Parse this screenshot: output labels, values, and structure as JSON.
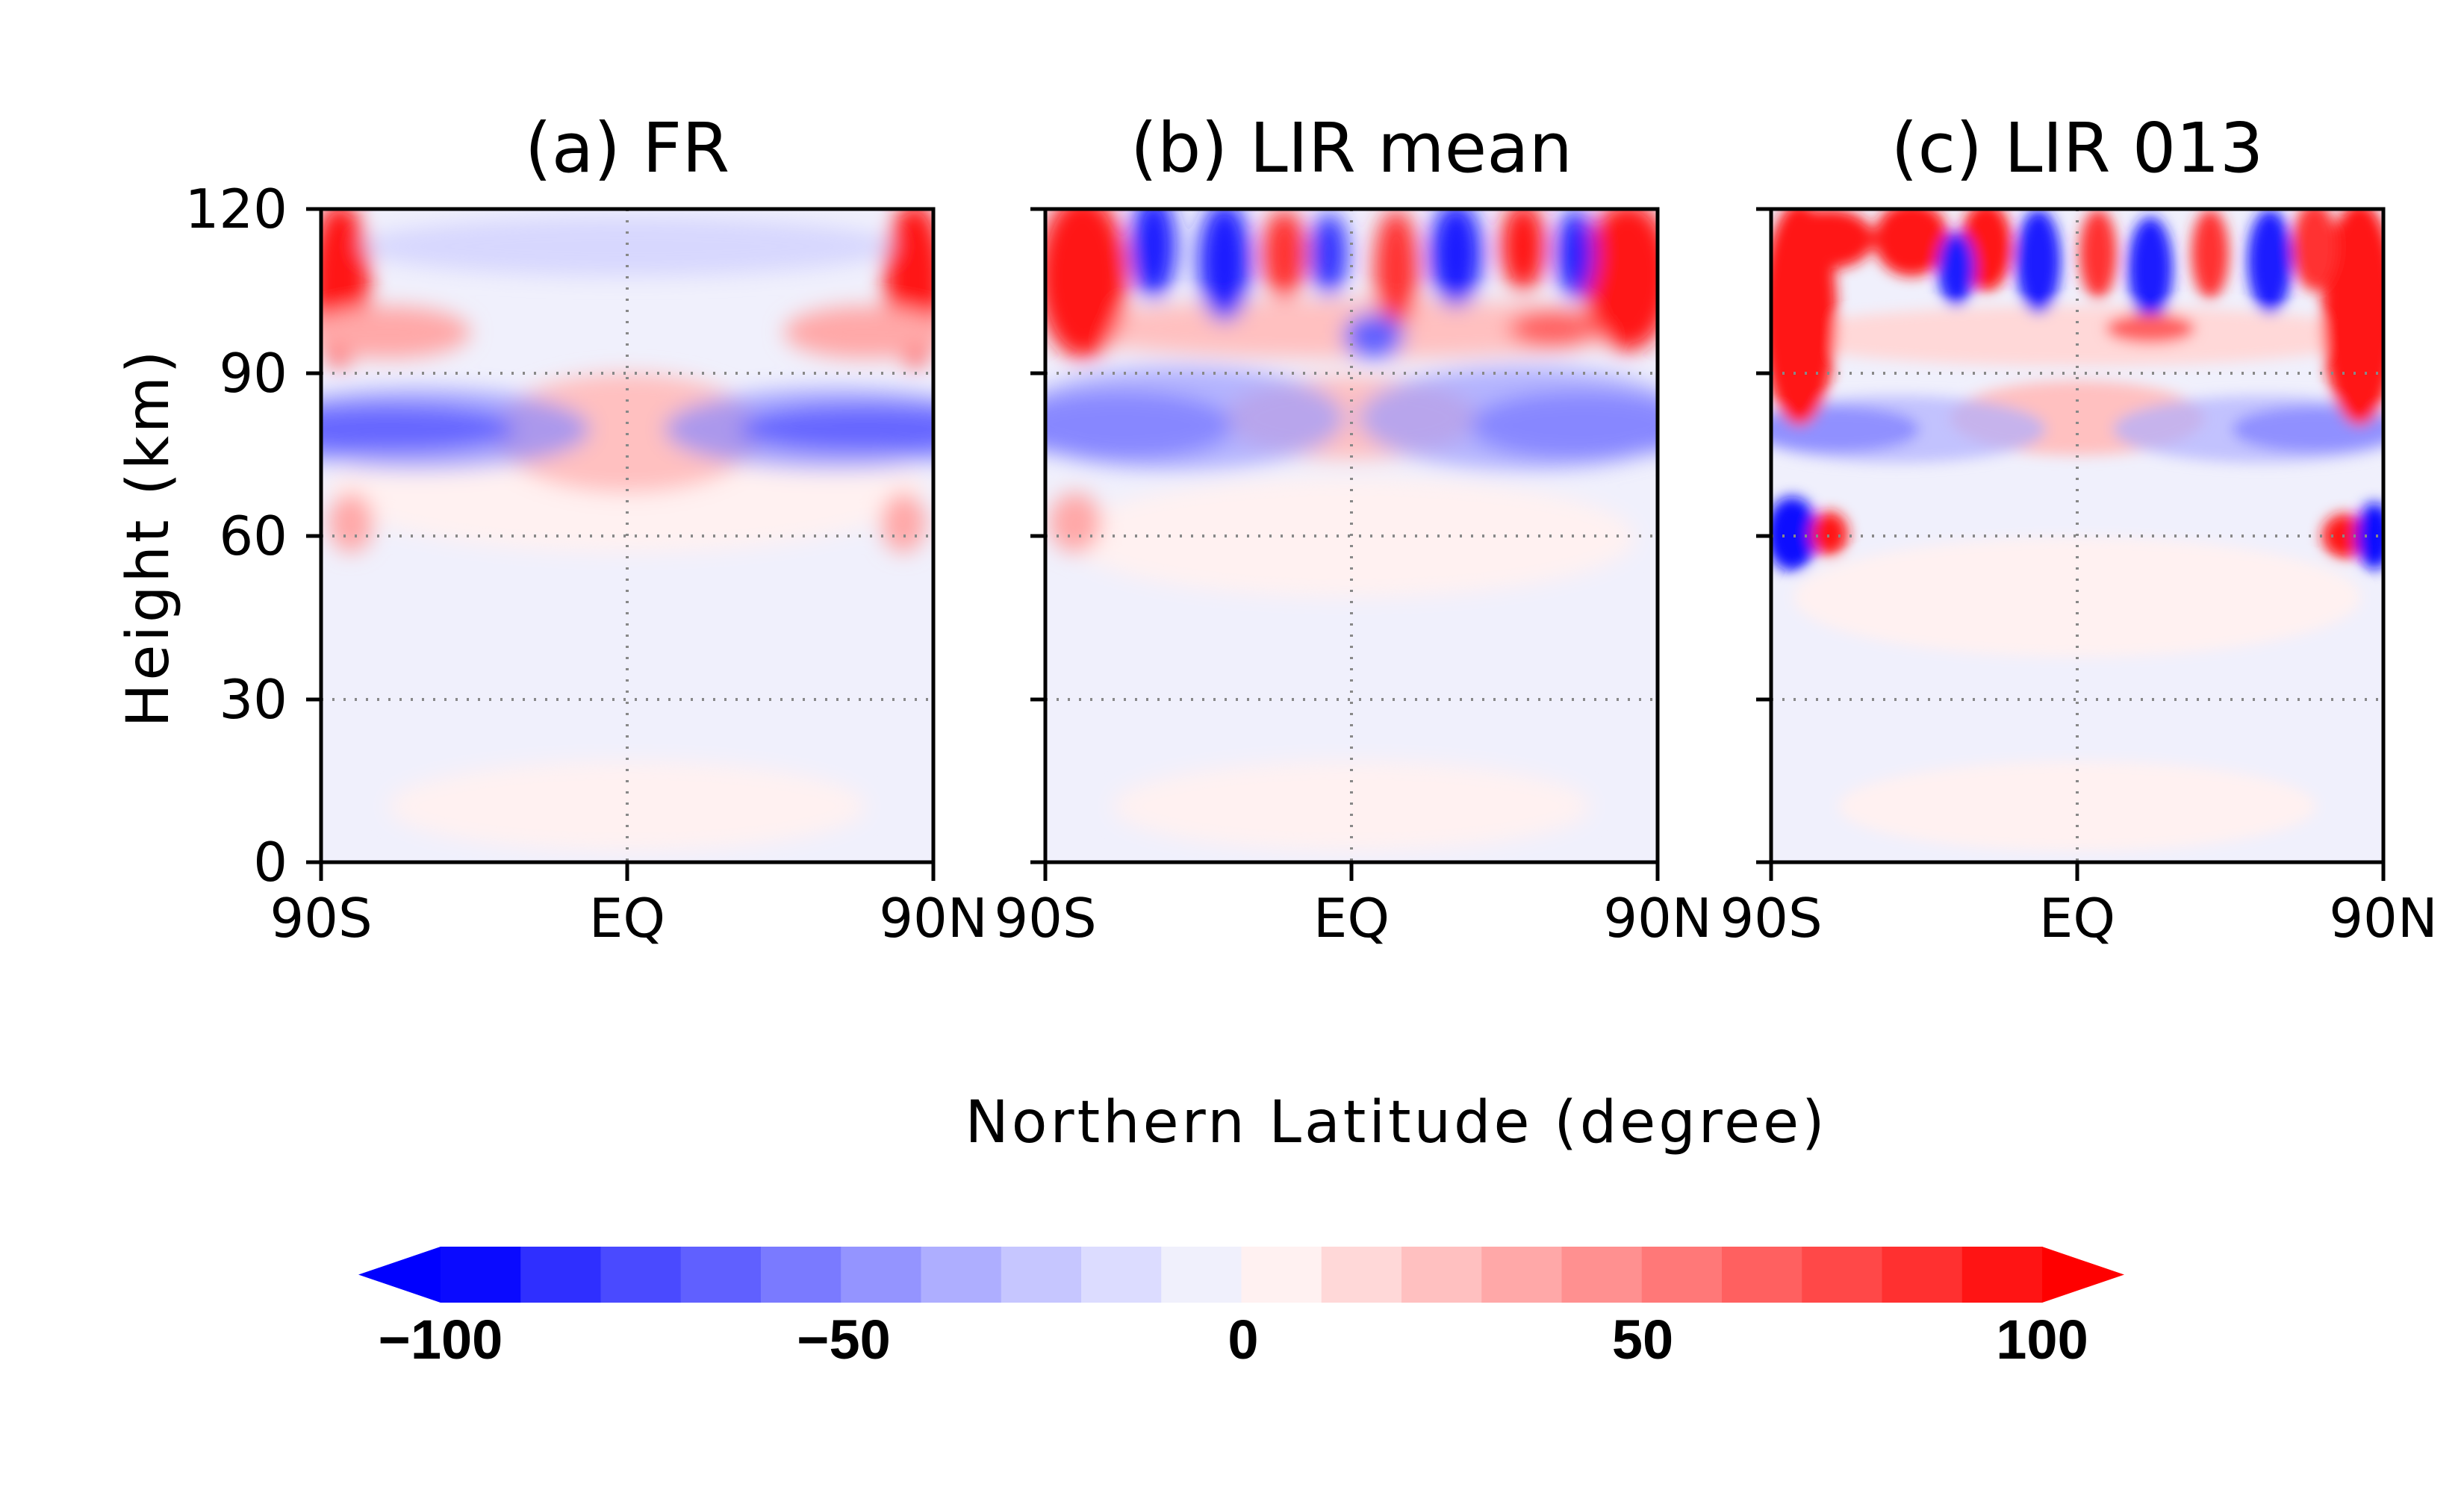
{
  "chart_data": [
    {
      "type": "heatmap",
      "title": "(a) FR",
      "xlabel": "Northern Latitude (degree)",
      "ylabel": "Height (km)",
      "x_ticks": [
        "90S",
        "EQ",
        "90N"
      ],
      "y_ticks": [
        "0",
        "30",
        "60",
        "90",
        "120"
      ],
      "xlim": [
        -90,
        90
      ],
      "ylim": [
        0,
        120
      ],
      "grid": "dotted at EQ and 30, 60, 90 km",
      "features": [
        {
          "lat": -80,
          "height": 79,
          "value": -95
        },
        {
          "lat": 80,
          "height": 79,
          "value": -95
        },
        {
          "lat": 0,
          "height": 80,
          "value": 40
        },
        {
          "lat": -88,
          "height": 108,
          "value": 100
        },
        {
          "lat": 88,
          "height": 108,
          "value": 100
        },
        {
          "lat": -70,
          "height": 98,
          "value": 35
        },
        {
          "lat": 70,
          "height": 98,
          "value": 35
        },
        {
          "lat": -85,
          "height": 64,
          "value": 40
        },
        {
          "lat": 85,
          "height": 64,
          "value": 40
        }
      ]
    },
    {
      "type": "heatmap",
      "title": "(b) LIR mean",
      "xlabel": "Northern Latitude (degree)",
      "ylabel": "Height (km)",
      "x_ticks": [
        "90S",
        "EQ",
        "90N"
      ],
      "y_ticks": [
        "0",
        "30",
        "60",
        "90",
        "120"
      ],
      "xlim": [
        -90,
        90
      ],
      "ylim": [
        0,
        120
      ],
      "grid": "dotted at EQ and 30, 60, 90 km",
      "features": [
        {
          "lat": -80,
          "height": 80,
          "value": -75
        },
        {
          "lat": 80,
          "height": 80,
          "value": -75
        },
        {
          "lat": 0,
          "height": 82,
          "value": 40
        },
        {
          "lat": -85,
          "height": 110,
          "value": 100
        },
        {
          "lat": -50,
          "height": 110,
          "value": -90
        },
        {
          "lat": 20,
          "height": 108,
          "value": 90
        },
        {
          "lat": 60,
          "height": 110,
          "value": -90
        },
        {
          "lat": 85,
          "height": 108,
          "value": 100
        }
      ]
    },
    {
      "type": "heatmap",
      "title": "(c) LIR 013",
      "xlabel": "Northern Latitude (degree)",
      "ylabel": "Height (km)",
      "x_ticks": [
        "90S",
        "EQ",
        "90N"
      ],
      "y_ticks": [
        "0",
        "30",
        "60",
        "90",
        "120"
      ],
      "xlim": [
        -90,
        90
      ],
      "ylim": [
        0,
        120
      ],
      "grid": "dotted at EQ and 30, 60, 90 km",
      "features": [
        {
          "lat": -85,
          "height": 60,
          "value": -100
        },
        {
          "lat": 85,
          "height": 60,
          "value": 100
        },
        {
          "lat": -80,
          "height": 79,
          "value": -75
        },
        {
          "lat": 80,
          "height": 79,
          "value": -75
        },
        {
          "lat": -85,
          "height": 110,
          "value": 100
        },
        {
          "lat": 85,
          "height": 110,
          "value": 100
        },
        {
          "lat": -40,
          "height": 112,
          "value": -95
        },
        {
          "lat": 50,
          "height": 112,
          "value": -95
        }
      ]
    }
  ],
  "colorbar": {
    "ticks": [
      "−100",
      "−50",
      "0",
      "50",
      "100"
    ],
    "levels": [
      -100,
      -90,
      -80,
      -70,
      -60,
      -50,
      -40,
      -30,
      -20,
      -10,
      0,
      10,
      20,
      30,
      40,
      50,
      60,
      70,
      80,
      90,
      100
    ],
    "colors": [
      "#0a0aff",
      "#2f2fff",
      "#4a4aff",
      "#6060ff",
      "#7a7aff",
      "#9494ff",
      "#aeaeff",
      "#c6c6ff",
      "#dcdcff",
      "#f0f0fc",
      "#fff1f1",
      "#ffd8d8",
      "#ffc0c0",
      "#ffa8a8",
      "#ff9090",
      "#ff7878",
      "#ff6060",
      "#ff4848",
      "#ff3030",
      "#ff1414"
    ],
    "under_color": "#0000ff",
    "over_color": "#ff0000"
  },
  "xlabel": "Northern Latitude (degree)",
  "ylabel": "Height (km)"
}
